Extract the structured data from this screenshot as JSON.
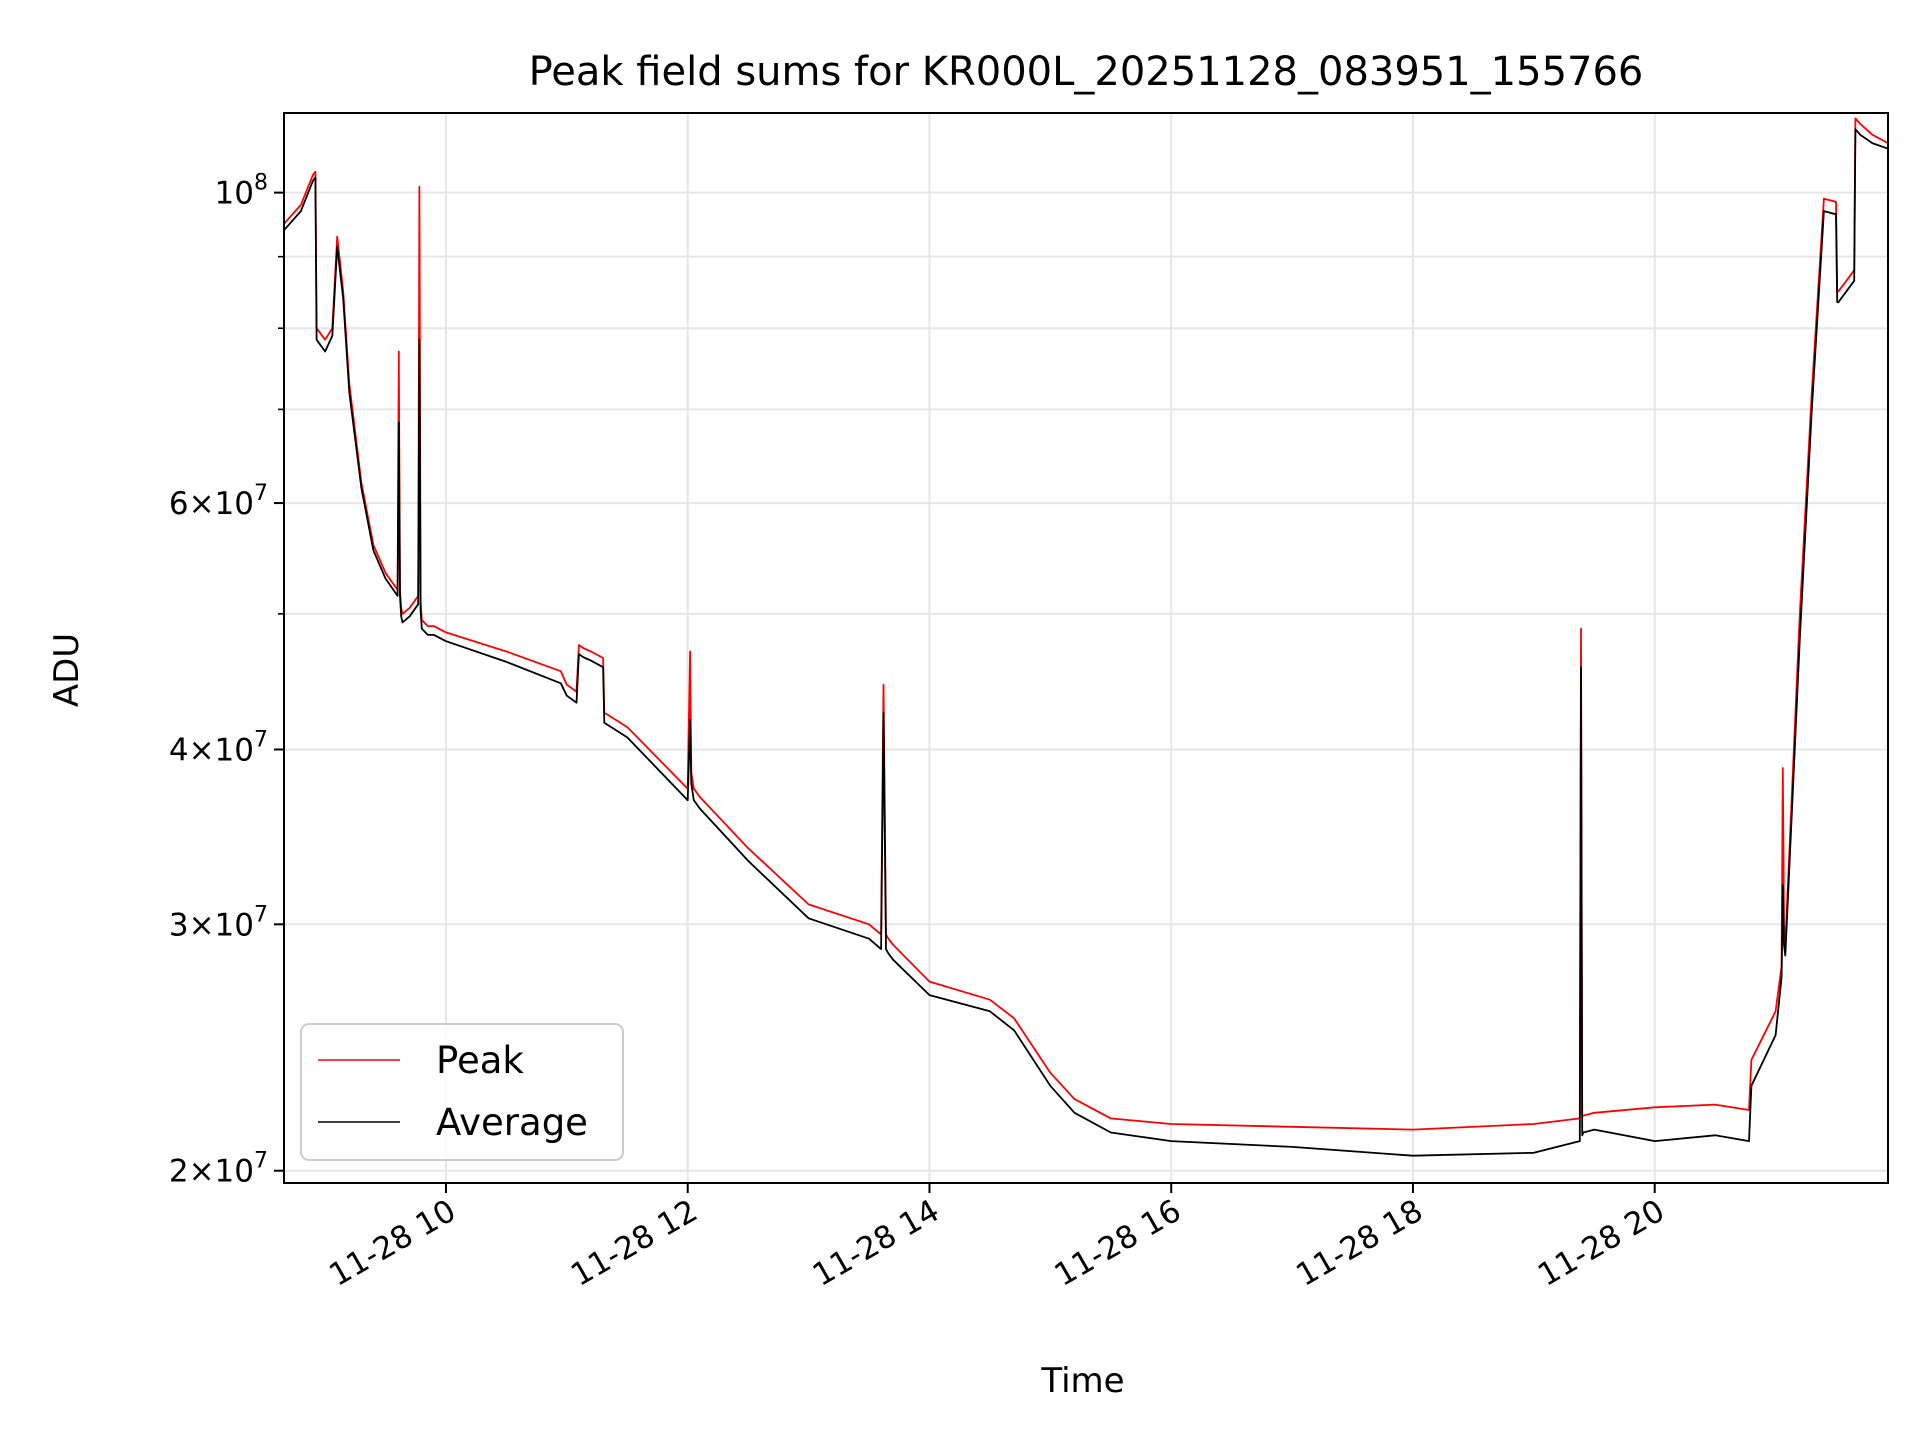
{
  "chart_data": {
    "type": "line",
    "title": "Peak field sums for KR000L_20251128_083951_155766",
    "xlabel": "Time",
    "ylabel": "ADU",
    "yscale": "log",
    "ylim": [
      19600000,
      114000000
    ],
    "xlim": [
      8.66,
      21.93
    ],
    "grid": true,
    "x_ticks": [
      {
        "value": 10,
        "label": "11-28 10"
      },
      {
        "value": 12,
        "label": "11-28 12"
      },
      {
        "value": 14,
        "label": "11-28 14"
      },
      {
        "value": 16,
        "label": "11-28 16"
      },
      {
        "value": 18,
        "label": "11-28 18"
      },
      {
        "value": 20,
        "label": "11-28 20"
      }
    ],
    "y_ticks": [
      {
        "value": 20000000,
        "mantissa": "2",
        "exp": "7"
      },
      {
        "value": 30000000,
        "mantissa": "3",
        "exp": "7"
      },
      {
        "value": 40000000,
        "mantissa": "4",
        "exp": "7"
      },
      {
        "value": 60000000,
        "mantissa": "6",
        "exp": "7"
      },
      {
        "value": 100000000,
        "mantissa": "",
        "exp": "8"
      }
    ],
    "y_minor_ticks": [
      50000000,
      70000000,
      80000000,
      90000000
    ],
    "legend": {
      "location": "lower-left",
      "entries": [
        "Peak",
        "Average"
      ]
    },
    "series": [
      {
        "name": "Peak",
        "color": "#ff0000",
        "x": [
          8.66,
          8.8,
          8.9,
          8.92,
          8.93,
          9.0,
          9.06,
          9.1,
          9.15,
          9.2,
          9.3,
          9.4,
          9.5,
          9.6,
          9.61,
          9.62,
          9.63,
          9.64,
          9.7,
          9.77,
          9.78,
          9.79,
          9.8,
          9.85,
          9.9,
          10.0,
          10.5,
          10.95,
          11.0,
          11.08,
          11.1,
          11.13,
          11.15,
          11.2,
          11.3,
          11.31,
          11.5,
          12.0,
          12.02,
          12.03,
          12.05,
          12.1,
          12.5,
          13.0,
          13.5,
          13.6,
          13.62,
          13.64,
          13.66,
          13.7,
          14.0,
          14.5,
          14.7,
          15.0,
          15.2,
          15.5,
          16.0,
          17.0,
          18.0,
          19.0,
          19.38,
          19.39,
          19.4,
          19.41,
          19.5,
          20.0,
          20.5,
          20.78,
          20.8,
          21.0,
          21.05,
          21.06,
          21.07,
          21.08,
          21.2,
          21.3,
          21.4,
          21.5,
          21.51,
          21.52,
          21.65,
          21.66,
          21.7,
          21.8,
          21.93
        ],
        "y": [
          95000000,
          98000000,
          103000000,
          103500000,
          80000000,
          78500000,
          80000000,
          93000000,
          85000000,
          73000000,
          62000000,
          56000000,
          53500000,
          52000000,
          77000000,
          52000000,
          50500000,
          50000000,
          50500000,
          51500000,
          101000000,
          51000000,
          49500000,
          49000000,
          49000000,
          48500000,
          47000000,
          45500000,
          44500000,
          44000000,
          47500000,
          47300000,
          47200000,
          47000000,
          46500000,
          42500000,
          41500000,
          37500000,
          47000000,
          38500000,
          37500000,
          37000000,
          34000000,
          31000000,
          30000000,
          29500000,
          44500000,
          29500000,
          29300000,
          29000000,
          27300000,
          26500000,
          25700000,
          23500000,
          22500000,
          21800000,
          21600000,
          21500000,
          21400000,
          21600000,
          21800000,
          48800000,
          21900000,
          21900000,
          22000000,
          22200000,
          22300000,
          22100000,
          24000000,
          26000000,
          28000000,
          38800000,
          30000000,
          29000000,
          50000000,
          72000000,
          99000000,
          98500000,
          85000000,
          85000000,
          88000000,
          113000000,
          112000000,
          110000000,
          108500000
        ]
      },
      {
        "name": "Average",
        "color": "#000000",
        "x": [
          8.66,
          8.8,
          8.9,
          8.92,
          8.93,
          9.0,
          9.06,
          9.1,
          9.15,
          9.2,
          9.3,
          9.4,
          9.5,
          9.6,
          9.61,
          9.62,
          9.63,
          9.64,
          9.7,
          9.77,
          9.78,
          9.79,
          9.8,
          9.85,
          9.9,
          10.0,
          10.5,
          10.95,
          11.0,
          11.08,
          11.1,
          11.13,
          11.15,
          11.2,
          11.3,
          11.31,
          11.5,
          12.0,
          12.02,
          12.03,
          12.05,
          12.1,
          12.5,
          13.0,
          13.5,
          13.6,
          13.62,
          13.64,
          13.66,
          13.7,
          14.0,
          14.5,
          14.7,
          15.0,
          15.2,
          15.5,
          16.0,
          17.0,
          18.0,
          19.0,
          19.38,
          19.39,
          19.4,
          19.41,
          19.5,
          20.0,
          20.5,
          20.78,
          20.8,
          21.0,
          21.05,
          21.06,
          21.07,
          21.08,
          21.2,
          21.3,
          21.4,
          21.5,
          21.51,
          21.52,
          21.65,
          21.66,
          21.7,
          21.8,
          21.93
        ],
        "y": [
          94000000,
          97000000,
          102000000,
          102500000,
          78500000,
          77000000,
          79000000,
          91500000,
          84000000,
          72000000,
          61500000,
          55500000,
          53000000,
          51500000,
          68500000,
          51500000,
          49800000,
          49300000,
          49800000,
          50800000,
          78500000,
          50300000,
          48800000,
          48300000,
          48300000,
          47800000,
          46200000,
          44600000,
          43700000,
          43200000,
          46800000,
          46600000,
          46500000,
          46300000,
          45800000,
          41800000,
          40800000,
          36800000,
          42000000,
          37800000,
          36800000,
          36300000,
          33300000,
          30300000,
          29300000,
          28800000,
          42500000,
          28800000,
          28600000,
          28300000,
          26700000,
          26000000,
          25200000,
          23000000,
          22000000,
          21300000,
          21000000,
          20800000,
          20500000,
          20600000,
          21000000,
          45800000,
          21200000,
          21300000,
          21400000,
          21000000,
          21200000,
          21000000,
          23000000,
          25000000,
          27500000,
          32000000,
          29000000,
          28500000,
          48000000,
          70000000,
          97000000,
          96500000,
          83500000,
          83500000,
          86500000,
          111000000,
          110000000,
          108500000,
          107500000
        ]
      }
    ]
  }
}
